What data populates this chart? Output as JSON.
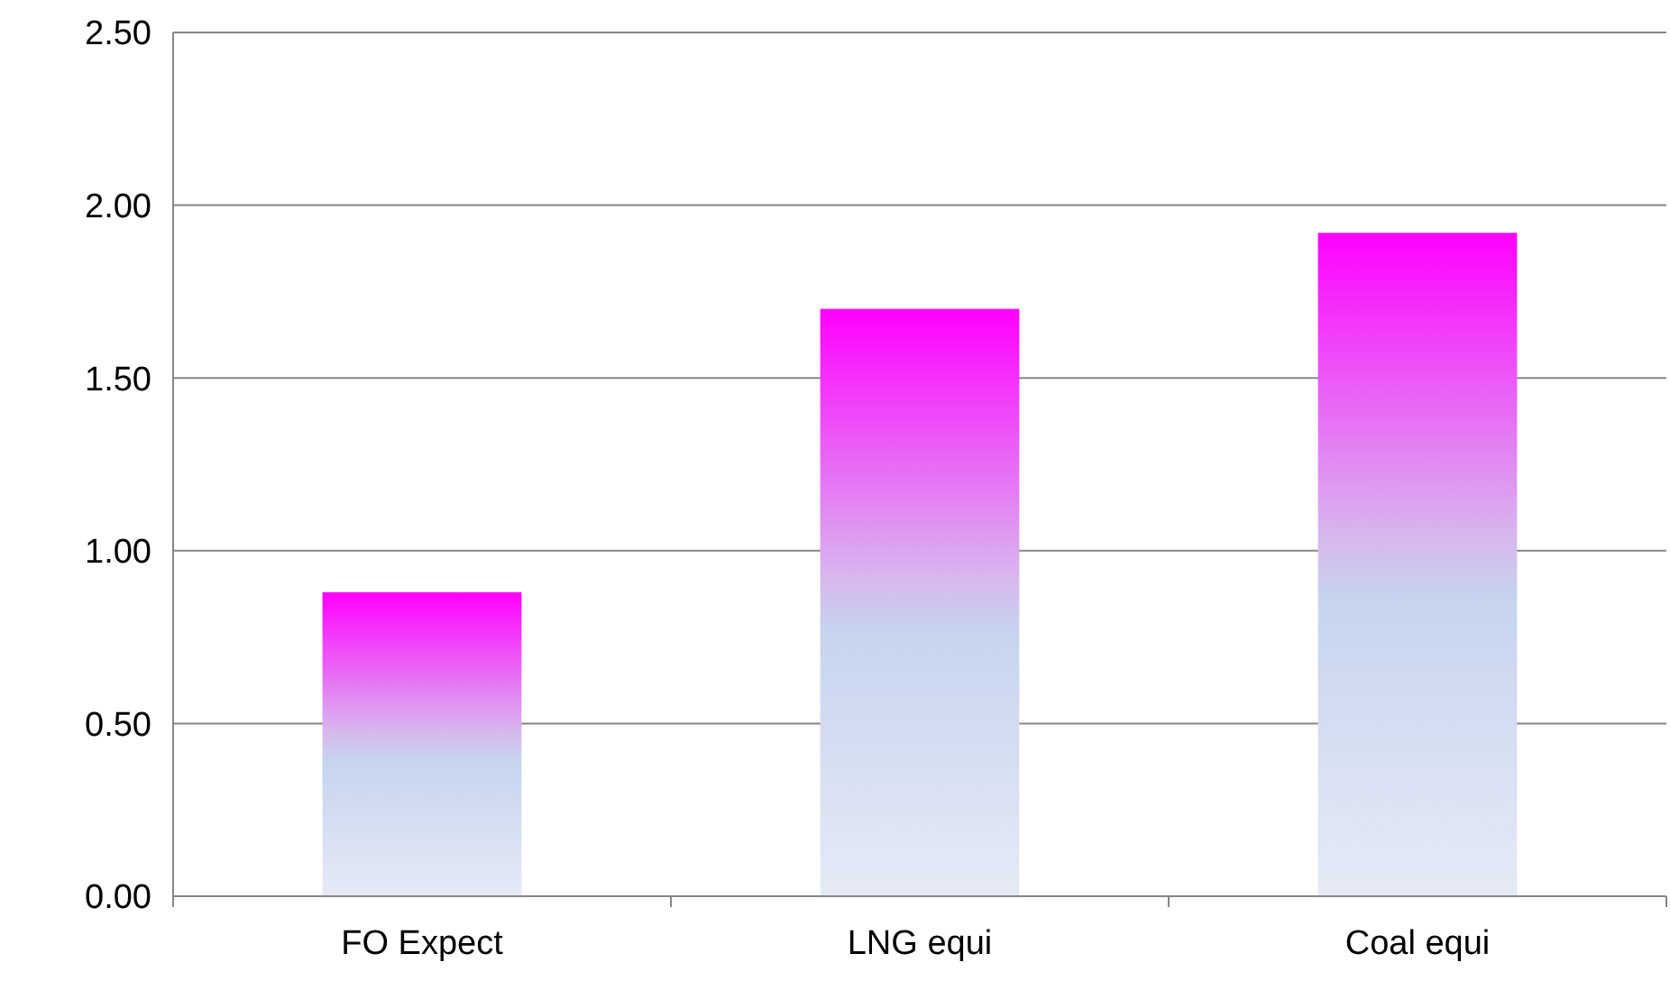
{
  "chart_data": {
    "type": "bar",
    "categories": [
      "FO Expect",
      "LNG equi",
      "Coal equi"
    ],
    "values": [
      0.88,
      1.7,
      1.92
    ],
    "color": "#ff00ff",
    "ylim": [
      0,
      2.5
    ],
    "yticks": [
      {
        "value": 0,
        "label": "0.00"
      },
      {
        "value": 0.5,
        "label": "0.50"
      },
      {
        "value": 1,
        "label": "1.00"
      },
      {
        "value": 1.5,
        "label": "1.50"
      },
      {
        "value": 2,
        "label": "2.00"
      },
      {
        "value": 2.5,
        "label": "2.50"
      }
    ],
    "grid": "y"
  }
}
